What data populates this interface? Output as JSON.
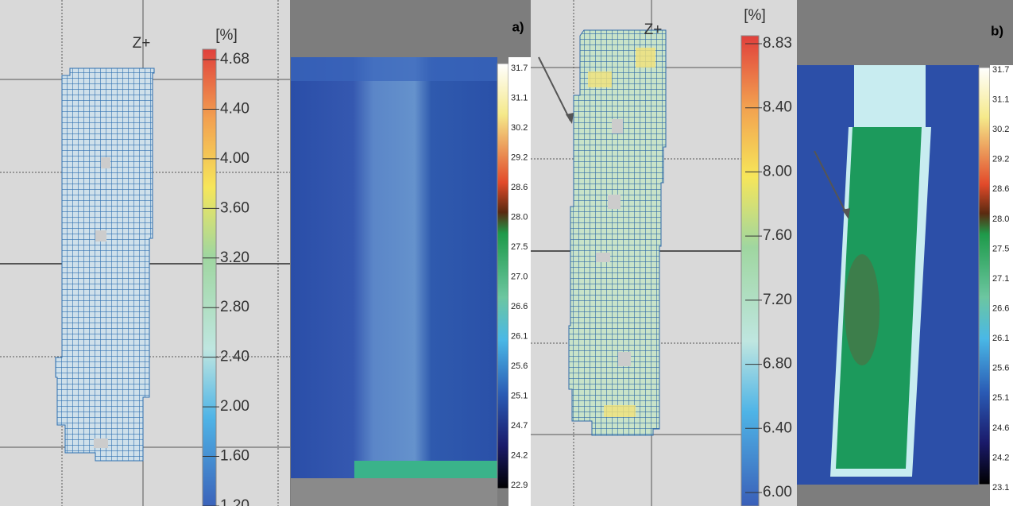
{
  "panel_a_mesh": {
    "axis_label": "Z+",
    "colorbar": {
      "unit": "[%]",
      "ticks": [
        "4.68",
        "4.40",
        "4.00",
        "3.60",
        "3.20",
        "2.80",
        "2.40",
        "2.00",
        "1.60",
        "1.20"
      ]
    }
  },
  "panel_a_thermal": {
    "label": "a)",
    "colorbar": {
      "ticks": [
        "31.7",
        "31.1",
        "30.2",
        "29.2",
        "28.6",
        "28.0",
        "27.5",
        "27.0",
        "26.6",
        "26.1",
        "25.6",
        "25.1",
        "24.7",
        "24.2",
        "22.9"
      ]
    }
  },
  "panel_b_mesh": {
    "axis_label": "Z+",
    "colorbar": {
      "unit": "[%]",
      "ticks": [
        "8.83",
        "8.40",
        "8.00",
        "7.60",
        "7.20",
        "6.80",
        "6.40",
        "6.00"
      ]
    }
  },
  "panel_b_thermal": {
    "label": "b)",
    "colorbar": {
      "ticks": [
        "31.7",
        "31.1",
        "30.2",
        "29.2",
        "28.6",
        "28.0",
        "27.5",
        "27.1",
        "26.6",
        "26.1",
        "25.6",
        "25.1",
        "24.6",
        "24.2",
        "23.1"
      ]
    }
  }
}
